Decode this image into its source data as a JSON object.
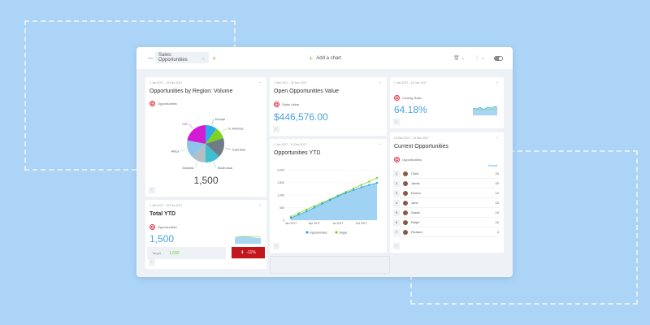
{
  "toolbar": {
    "dashboard": "Sales: Opportunities",
    "add_chart": "Add a chart"
  },
  "colors": {
    "accent": "#4aa3df",
    "green": "#7ac943",
    "alert": "#c3161c"
  },
  "region": {
    "date": "1 Jan 2017 - 19 Dec 2017",
    "title": "Opportunities by Region: Volume",
    "legend": "Opportunities",
    "total": "1,500",
    "chart_data": {
      "type": "pie",
      "slices": [
        {
          "label": "Europe",
          "value": 10,
          "color": "#2fa8e8"
        },
        {
          "label": "N. America",
          "value": 10,
          "color": "#7ed321"
        },
        {
          "label": "East Asia",
          "value": 17,
          "color": "#6f7c86"
        },
        {
          "label": "South Asia",
          "value": 13,
          "color": "#3fbfcf"
        },
        {
          "label": "Oceania",
          "value": 13,
          "color": "#b3bfc6"
        },
        {
          "label": "Africa",
          "value": 15,
          "color": "#8cc4ea"
        },
        {
          "label": "CIS",
          "value": 22,
          "color": "#d41bd4"
        }
      ]
    }
  },
  "total_ytd": {
    "date": "1 Jan 2017 - 19 Dec 2017",
    "title": "Total YTD",
    "legend": "Opportunities",
    "value": "1,500",
    "target_label": "Target",
    "target_value": "1,680",
    "change": "-11%"
  },
  "open_value": {
    "date": "1 Sep 2017 - 30 Nov 2017",
    "title": "Open Opportunities Value",
    "legend": "Sales Value",
    "value": "$446,576.00"
  },
  "ytd": {
    "date": "1 Jan 2017 - 31 Dec 2017",
    "title": "Opportunities YTD",
    "chart_data": {
      "type": "line",
      "ylim": [
        0,
        2000
      ],
      "yticks": [
        "0",
        "500",
        "1,000",
        "1,500",
        "2,000"
      ],
      "xticks": [
        "Jan 2017",
        "Apr 2017",
        "Jul 2017",
        "Oct 2017"
      ],
      "series": [
        {
          "name": "Opportunities",
          "color": "#2fa8e8",
          "values": [
            90,
            220,
            350,
            500,
            650,
            800,
            950,
            1080,
            1200,
            1310,
            1400,
            1480
          ]
        },
        {
          "name": "Target",
          "color": "#7ed321",
          "values": [
            140,
            280,
            420,
            560,
            700,
            830,
            980,
            1120,
            1260,
            1400,
            1530,
            1680
          ]
        }
      ]
    }
  },
  "closing": {
    "date": "1 Jan 2017 - 31 Dec 2017",
    "legend": "Closing Ratio",
    "value": "64.18%"
  },
  "current": {
    "date": "13 Dec 2017 - 19 Dec 2017",
    "title": "Current Opportunities",
    "legend": "Opportunities",
    "col": "Actual",
    "rows": [
      {
        "n": "1",
        "name": "Chris",
        "v": "24"
      },
      {
        "n": "2",
        "name": "Jamie",
        "v": "20"
      },
      {
        "n": "3",
        "name": "Emma",
        "v": "12"
      },
      {
        "n": "4",
        "name": "Jane",
        "v": "10"
      },
      {
        "n": "5",
        "name": "Sarah",
        "v": "10"
      },
      {
        "n": "6",
        "name": "Ralph",
        "v": "10"
      },
      {
        "n": "7",
        "name": "Richard",
        "v": "4"
      }
    ]
  }
}
